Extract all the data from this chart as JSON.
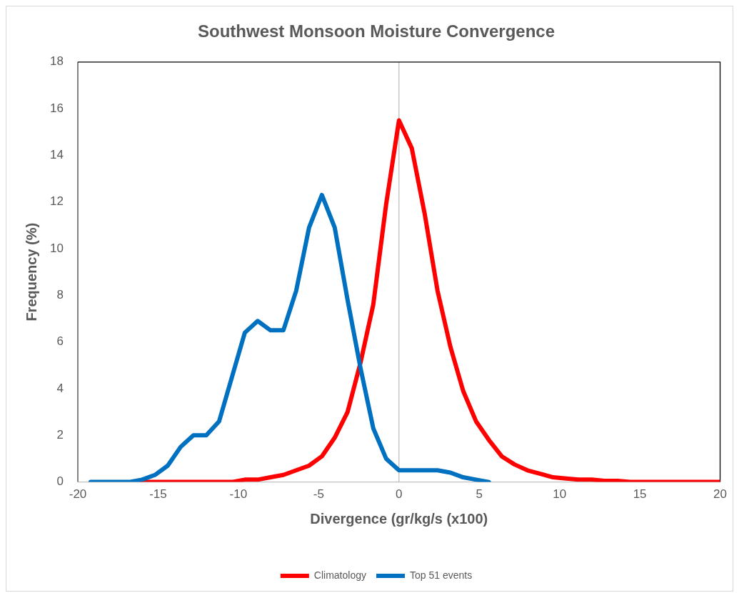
{
  "chart_data": {
    "type": "line",
    "title": "Southwest Monsoon Moisture Convergence",
    "xlabel": "Divergence (gr/kg/s (x100)",
    "ylabel": "Frequency (%)",
    "xlim": [
      -20,
      20
    ],
    "xticks": [
      -20,
      -15,
      -10,
      -5,
      0,
      5,
      10,
      15,
      20
    ],
    "ylim": [
      0,
      18
    ],
    "yticks": [
      0,
      2,
      4,
      6,
      8,
      10,
      12,
      14,
      16,
      18
    ],
    "grid": false,
    "legend": "bottom",
    "marker": "none",
    "line_style": "solid",
    "ref_lines": [
      {
        "axis": "x",
        "value": 0,
        "color": "#bfbfbf"
      }
    ],
    "series": [
      {
        "name": "Climatology",
        "color": "#ff0000",
        "x": [
          -16.0,
          -15.2,
          -14.4,
          -13.6,
          -12.8,
          -12.0,
          -11.2,
          -10.4,
          -9.6,
          -8.8,
          -8.0,
          -7.2,
          -6.4,
          -5.6,
          -4.8,
          -4.0,
          -3.2,
          -2.4,
          -1.6,
          -0.8,
          0.0,
          0.8,
          1.6,
          2.4,
          3.2,
          4.0,
          4.8,
          5.6,
          6.4,
          7.2,
          8.0,
          8.8,
          9.6,
          10.4,
          11.2,
          12.0,
          12.8,
          13.6,
          14.4,
          15.2,
          16.0,
          16.8,
          17.6,
          18.4,
          19.2,
          20.0
        ],
        "values": [
          0,
          0,
          0,
          0,
          0,
          0,
          0,
          0,
          0.1,
          0.1,
          0.2,
          0.3,
          0.5,
          0.7,
          1.1,
          1.9,
          3.0,
          5.1,
          7.6,
          11.9,
          15.5,
          14.3,
          11.5,
          8.2,
          5.8,
          3.9,
          2.6,
          1.8,
          1.1,
          0.75,
          0.5,
          0.35,
          0.2,
          0.15,
          0.1,
          0.1,
          0.05,
          0.05,
          0,
          0,
          0,
          0,
          0,
          0,
          0,
          0
        ]
      },
      {
        "name": "Top 51 events",
        "color": "#0070c0",
        "x": [
          -19.2,
          -18.4,
          -17.6,
          -16.8,
          -16.0,
          -15.2,
          -14.4,
          -13.6,
          -12.8,
          -12.0,
          -11.2,
          -10.4,
          -9.6,
          -8.8,
          -8.0,
          -7.2,
          -6.4,
          -5.6,
          -4.8,
          -4.0,
          -3.2,
          -2.4,
          -1.6,
          -0.8,
          0.0,
          0.8,
          1.6,
          2.4,
          3.2,
          4.0,
          4.8,
          5.6
        ],
        "values": [
          0,
          0,
          0,
          0,
          0.1,
          0.3,
          0.7,
          1.5,
          2.0,
          2.0,
          2.6,
          4.5,
          6.4,
          6.9,
          6.5,
          6.5,
          8.2,
          10.9,
          12.3,
          10.9,
          7.8,
          4.9,
          2.3,
          1.0,
          0.5,
          0.5,
          0.5,
          0.5,
          0.4,
          0.2,
          0.1,
          0
        ]
      }
    ]
  }
}
